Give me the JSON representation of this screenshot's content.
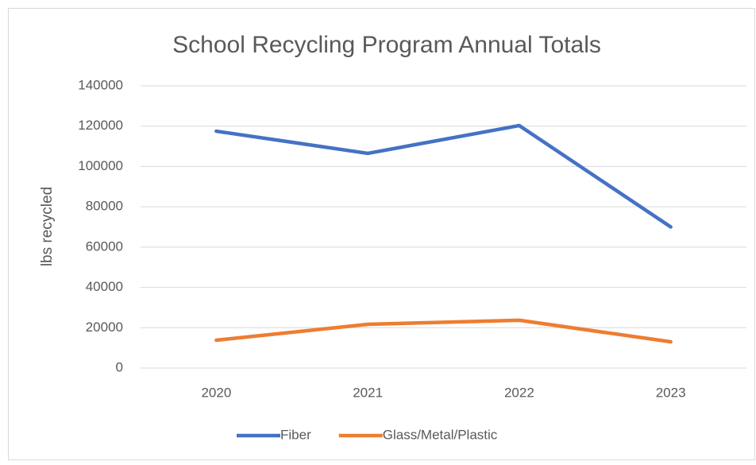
{
  "chart_data": {
    "type": "line",
    "title": "School Recycling Program Annual Totals",
    "y_label": "lbs recycled",
    "categories": [
      "2020",
      "2021",
      "2022",
      "2023"
    ],
    "series": [
      {
        "name": "Fiber",
        "color": "#4472c4",
        "values": [
          117500,
          106500,
          120300,
          70000
        ]
      },
      {
        "name": "Glass/Metal/Plastic",
        "color": "#ed7d31",
        "values": [
          13800,
          21700,
          23700,
          13000
        ]
      }
    ],
    "ylim": [
      0,
      140000
    ],
    "yticks": [
      0,
      20000,
      40000,
      60000,
      80000,
      100000,
      120000,
      140000
    ],
    "grid": true,
    "legend": "bottom"
  }
}
